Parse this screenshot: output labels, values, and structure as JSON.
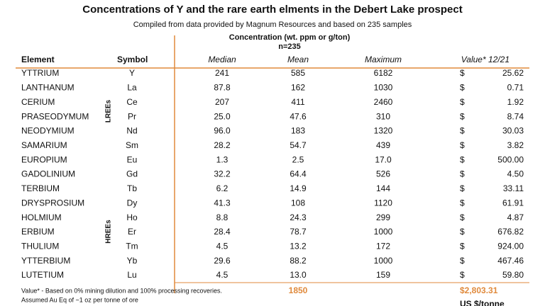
{
  "header": {
    "title": "Concentrations of Y and the rare earth elments in the Debert Lake prospect",
    "subtitle": "Compiled from data provided by Magnum Resources and based on 235 samples",
    "concentration_label": "Concentration (wt. ppm or g/ton)",
    "n_label": "n=235"
  },
  "table": {
    "columns": [
      "Element",
      "Symbol",
      "Median",
      "Mean",
      "Maximum",
      "Value* 12/21"
    ],
    "rows": [
      [
        "YTTRIUM",
        "Y",
        "241",
        "585",
        "6182",
        "$",
        "25.62"
      ],
      [
        "LANTHANUM",
        "La",
        "87.8",
        "162",
        "1030",
        "$",
        "0.71"
      ],
      [
        "CERIUM",
        "Ce",
        "207",
        "411",
        "2460",
        "$",
        "1.92"
      ],
      [
        "PRASEODYMUM",
        "Pr",
        "25.0",
        "47.6",
        "310",
        "$",
        "8.74"
      ],
      [
        "NEODYMIUM",
        "Nd",
        "96.0",
        "183",
        "1320",
        "$",
        "30.03"
      ],
      [
        "SAMARIUM",
        "Sm",
        "28.2",
        "54.7",
        "439",
        "$",
        "3.82"
      ],
      [
        "EUROPIUM",
        "Eu",
        "1.3",
        "2.5",
        "17.0",
        "$",
        "500.00"
      ],
      [
        "GADOLINIUM",
        "Gd",
        "32.2",
        "64.4",
        "526",
        "$",
        "4.50"
      ],
      [
        "TERBIUM",
        "Tb",
        "6.2",
        "14.9",
        "144",
        "$",
        "33.11"
      ],
      [
        "DRYSPROSIUM",
        "Dy",
        "41.3",
        "108",
        "1120",
        "$",
        "61.91"
      ],
      [
        "HOLMIUM",
        "Ho",
        "8.8",
        "24.3",
        "299",
        "$",
        "4.87"
      ],
      [
        "ERBIUM",
        "Er",
        "28.4",
        "78.7",
        "1000",
        "$",
        "676.82"
      ],
      [
        "THULIUM",
        "Tm",
        "4.5",
        "13.2",
        "172",
        "$",
        "924.00"
      ],
      [
        "YTTERBIUM",
        "Yb",
        "29.6",
        "88.2",
        "1000",
        "$",
        "467.46"
      ],
      [
        "LUTETIUM",
        "Lu",
        "4.5",
        "13.0",
        "159",
        "$",
        "59.80"
      ]
    ],
    "groups": [
      "LREEs",
      "HREEs"
    ],
    "total_mean": "1850",
    "total_value": "$2,803.31",
    "total_unit": "US $/tonne"
  },
  "footnotes": [
    "Value* - Based on 0% mining dilution and 100% processing recoveries.",
    "Assumed Au Eq of ~1 oz per tonne of ore"
  ]
}
